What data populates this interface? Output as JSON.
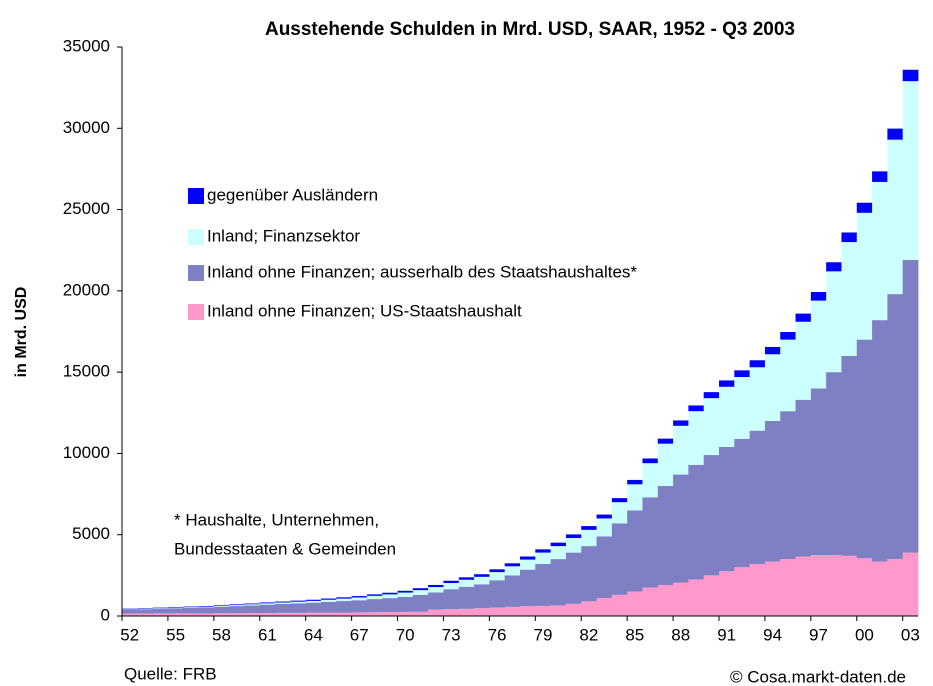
{
  "chart_data": {
    "type": "bar",
    "stacked": true,
    "title": "Ausstehende Schulden in Mrd. USD, SAAR, 1952 - Q3 2003",
    "y_label": "in Mrd. USD",
    "annotation": [
      "* Haushalte, Unternehmen,",
      "Bundesstaaten & Gemeinden"
    ],
    "source": "Quelle: FRB",
    "credit": "© Cosa.markt-daten.de",
    "categories": [
      "52",
      null,
      null,
      "55",
      null,
      null,
      "58",
      null,
      null,
      "61",
      null,
      null,
      "64",
      null,
      null,
      "67",
      null,
      null,
      "70",
      null,
      null,
      "73",
      null,
      null,
      "76",
      null,
      null,
      "79",
      null,
      null,
      "82",
      null,
      null,
      "85",
      null,
      null,
      "88",
      null,
      null,
      "91",
      null,
      null,
      "94",
      null,
      null,
      "97",
      null,
      null,
      "00",
      null,
      null,
      "03"
    ],
    "ylim": [
      0,
      35000
    ],
    "yticks": [
      0,
      5000,
      10000,
      15000,
      20000,
      25000,
      30000,
      35000
    ],
    "legend": "upper left",
    "series": [
      {
        "name": "Inland ohne Finanzen; US-Staatshaushalt",
        "color": "#ff99cc",
        "values": [
          150,
          150,
          160,
          160,
          160,
          160,
          170,
          170,
          180,
          180,
          190,
          190,
          200,
          200,
          210,
          220,
          230,
          240,
          250,
          260,
          400,
          420,
          440,
          480,
          520,
          560,
          600,
          620,
          650,
          750,
          900,
          1100,
          1300,
          1500,
          1750,
          1900,
          2050,
          2250,
          2500,
          2750,
          3000,
          3200,
          3350,
          3500,
          3650,
          3750,
          3750,
          3700,
          3550,
          3350,
          3500,
          3900
        ]
      },
      {
        "name": "Inland ohne Finanzen; ausserhalb des Staatshaushaltes*",
        "color": "#7f7fc4",
        "values": [
          250,
          270,
          290,
          320,
          340,
          370,
          390,
          440,
          470,
          520,
          550,
          590,
          620,
          670,
          710,
          750,
          810,
          860,
          930,
          1040,
          1050,
          1230,
          1360,
          1470,
          1680,
          1940,
          2250,
          2580,
          2850,
          3150,
          3400,
          3800,
          4400,
          5000,
          5550,
          6100,
          6650,
          7050,
          7400,
          7650,
          7900,
          8200,
          8650,
          9100,
          9650,
          10250,
          11250,
          12300,
          13450,
          14850,
          16300,
          18000
        ]
      },
      {
        "name": "Inland; Finanzsektor",
        "color": "#ccffff",
        "values": [
          20,
          25,
          30,
          35,
          40,
          45,
          50,
          60,
          70,
          80,
          90,
          100,
          110,
          130,
          150,
          170,
          200,
          230,
          260,
          290,
          330,
          380,
          430,
          460,
          500,
          560,
          620,
          700,
          800,
          900,
          1000,
          1100,
          1300,
          1600,
          2100,
          2600,
          3000,
          3300,
          3500,
          3700,
          3800,
          3900,
          4100,
          4400,
          4800,
          5400,
          6200,
          7000,
          7800,
          8500,
          9500,
          11000
        ]
      },
      {
        "name": "gegenüber Ausländern",
        "color": "#0000ff",
        "values": [
          30,
          30,
          35,
          35,
          40,
          40,
          45,
          45,
          50,
          55,
          60,
          65,
          70,
          75,
          80,
          85,
          90,
          100,
          110,
          120,
          130,
          140,
          150,
          160,
          170,
          180,
          190,
          200,
          210,
          220,
          230,
          240,
          250,
          270,
          290,
          310,
          330,
          350,
          370,
          390,
          410,
          430,
          450,
          470,
          500,
          530,
          560,
          590,
          620,
          650,
          680,
          700
        ]
      }
    ]
  }
}
